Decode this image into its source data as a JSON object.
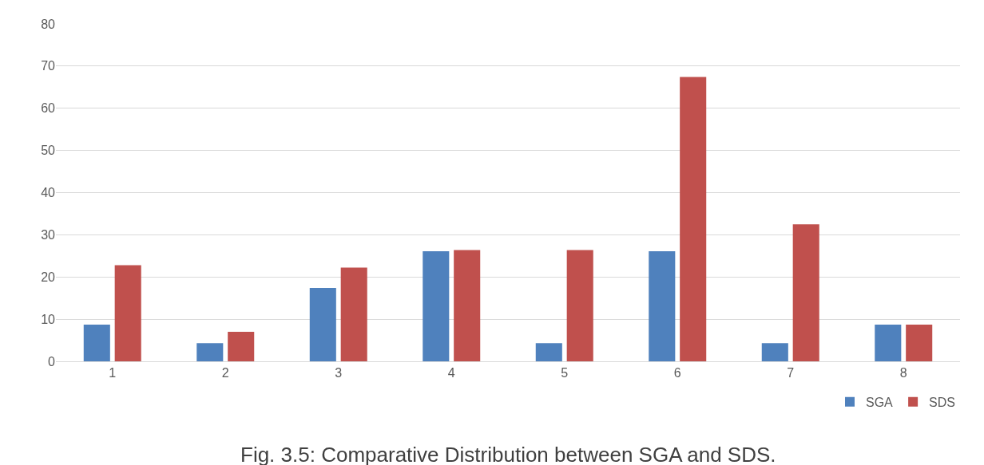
{
  "chart_data": {
    "type": "bar",
    "title": "Fig. 3.5: Comparative Distribution between SGA and SDS.",
    "categories": [
      "1",
      "2",
      "3",
      "4",
      "5",
      "6",
      "7",
      "8"
    ],
    "series": [
      {
        "name": "SGA",
        "color": "#4f81bd",
        "values": [
          8.7,
          4.3,
          17.4,
          26.1,
          4.3,
          26.1,
          4.3,
          8.7
        ]
      },
      {
        "name": "SDS",
        "color": "#c0504d",
        "values": [
          22.8,
          7.0,
          22.2,
          26.4,
          26.4,
          67.4,
          32.5,
          8.7
        ]
      }
    ],
    "ylim": [
      0,
      80
    ],
    "yticks": [
      0,
      10,
      20,
      30,
      40,
      50,
      60,
      70,
      80
    ],
    "grid": "y",
    "legend": "bottom right"
  }
}
